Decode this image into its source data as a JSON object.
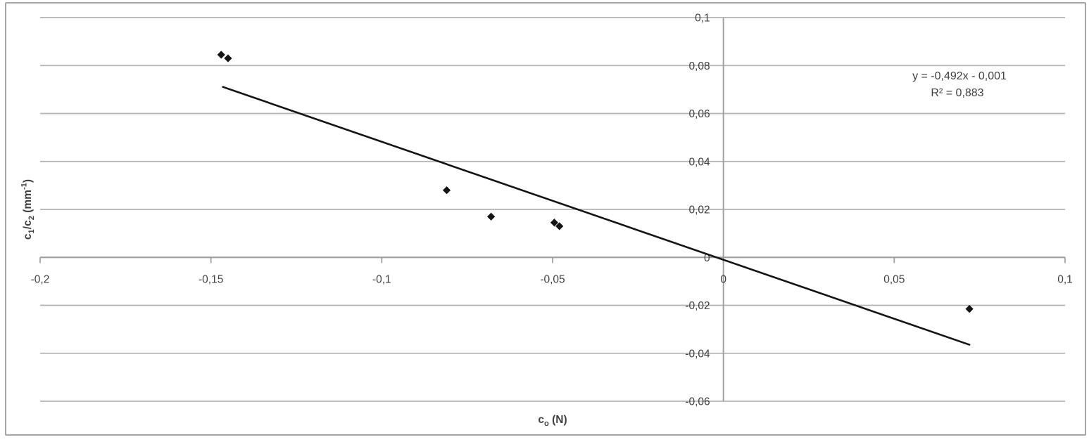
{
  "chart_data": {
    "type": "scatter",
    "title": "",
    "points": [
      {
        "x": -0.147,
        "y": 0.0845
      },
      {
        "x": -0.145,
        "y": 0.083
      },
      {
        "x": -0.081,
        "y": 0.028
      },
      {
        "x": -0.068,
        "y": 0.017
      },
      {
        "x": -0.0495,
        "y": 0.0145
      },
      {
        "x": -0.048,
        "y": 0.013
      },
      {
        "x": 0.072,
        "y": -0.0215
      }
    ],
    "trendline": {
      "slope": -0.492,
      "intercept": -0.001,
      "x_start": -0.1465,
      "x_end": 0.072,
      "equation": "y = -0,492x - 0,001",
      "r_squared": "R² = 0,883"
    },
    "x_axis": {
      "min": -0.2,
      "max": 0.1,
      "ticks": [
        {
          "v": -0.2,
          "label": "-0,2"
        },
        {
          "v": -0.15,
          "label": "-0,15"
        },
        {
          "v": -0.1,
          "label": "-0,1"
        },
        {
          "v": -0.05,
          "label": "-0,05"
        },
        {
          "v": 0,
          "label": "0"
        },
        {
          "v": 0.05,
          "label": "0,05"
        },
        {
          "v": 0.1,
          "label": "0,1"
        }
      ],
      "title_parts": [
        {
          "t": "c"
        },
        {
          "t": "o",
          "s": "sub"
        },
        {
          "t": " (N)"
        }
      ]
    },
    "y_axis": {
      "min": -0.06,
      "max": 0.1,
      "ticks": [
        {
          "v": 0.1,
          "label": "0,1"
        },
        {
          "v": 0.08,
          "label": "0,08"
        },
        {
          "v": 0.06,
          "label": "0,06"
        },
        {
          "v": 0.04,
          "label": "0,04"
        },
        {
          "v": 0.02,
          "label": "0,02"
        },
        {
          "v": 0,
          "label": "0"
        },
        {
          "v": -0.02,
          "label": "-0,02"
        },
        {
          "v": -0.04,
          "label": "-0,04"
        },
        {
          "v": -0.06,
          "label": "-0,06"
        }
      ],
      "title_parts": [
        {
          "t": "c"
        },
        {
          "t": "1",
          "s": "sub"
        },
        {
          "t": "/c"
        },
        {
          "t": "2",
          "s": "sub"
        },
        {
          "t": " (mm"
        },
        {
          "t": "-1",
          "s": "sup"
        },
        {
          "t": ")"
        }
      ]
    },
    "legend": null,
    "grid": true,
    "style": {
      "marker": "diamond",
      "marker_color": "#141414",
      "trendline_color": "#141414",
      "grid_color": "#b3b3b3",
      "axis_color": "#9d9d9d",
      "text_color": "#404040",
      "frame_color": "#a6a6a6",
      "background": "#ffffff"
    }
  }
}
